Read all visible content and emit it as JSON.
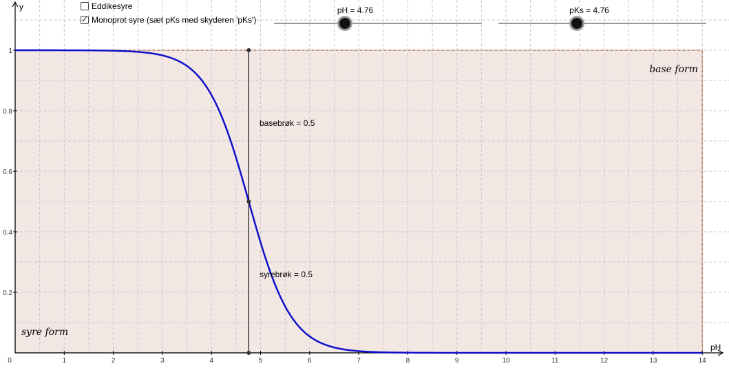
{
  "checkboxes": [
    {
      "label": "Eddikesyre",
      "checked": false
    },
    {
      "label": "Monoprot syre (sæt pKs med skyderen 'pKs')",
      "checked": true
    }
  ],
  "sliders": {
    "ph": {
      "label": "pH = 4.76",
      "value": 4.76
    },
    "pks": {
      "label": "pKs = 4.76",
      "value": 4.76
    }
  },
  "colors": {
    "curve": "#1010c8",
    "region_fill": "#f3e7e4",
    "region_border": "#b05a30",
    "grid": "#c8c8c8"
  },
  "chart_data": {
    "type": "line",
    "xlabel": "pH",
    "ylabel": "y",
    "xlim": [
      0,
      14
    ],
    "ylim": [
      0,
      1
    ],
    "x_ticks": [
      "0",
      "1",
      "2",
      "3",
      "4",
      "5",
      "6",
      "7",
      "8",
      "9",
      "10",
      "11",
      "12",
      "13",
      "14"
    ],
    "y_ticks": [
      "0.2",
      "0.4",
      "0.6",
      "0.8",
      "1"
    ],
    "grid": true,
    "series": [
      {
        "function": "1/(1+10^(pH-pKs))",
        "pKs": 4.76
      }
    ],
    "marker_x": 4.76,
    "annotations": {
      "basebroek": "basebrøk = 0.5",
      "syrebroek": "syrebrøk = 0.5",
      "base_region": "base form",
      "acid_region": "syre form"
    }
  }
}
